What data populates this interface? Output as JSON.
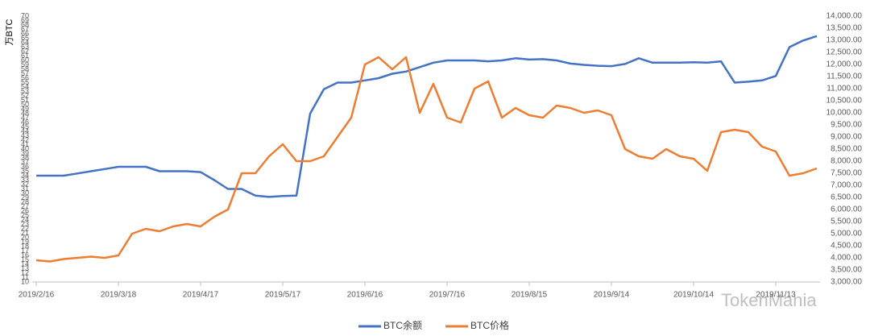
{
  "chart_data": {
    "type": "line",
    "y_label": "万BTC",
    "watermark": "TokenMania",
    "categories": [
      "2019/2/16",
      null,
      null,
      null,
      null,
      null,
      "2019/3/18",
      null,
      null,
      null,
      null,
      null,
      "2019/4/17",
      null,
      null,
      null,
      null,
      null,
      "2019/5/17",
      null,
      null,
      null,
      null,
      null,
      "2019/6/16",
      null,
      null,
      null,
      null,
      null,
      "2019/7/16",
      null,
      null,
      null,
      null,
      null,
      "2019/8/15",
      null,
      null,
      null,
      null,
      null,
      "2019/9/14",
      null,
      null,
      null,
      null,
      null,
      "2019/10/14",
      null,
      null,
      null,
      null,
      null,
      "2019/11/13",
      null,
      null,
      null
    ],
    "series": [
      {
        "name": "BTC余额",
        "color": "#4472c4",
        "axis": "y",
        "values": [
          34,
          34,
          34,
          34.5,
          35,
          35.5,
          36,
          36,
          36,
          35,
          35,
          35,
          34.8,
          33,
          31,
          31,
          29.5,
          29.2,
          29.4,
          29.5,
          48,
          53.5,
          55,
          55,
          55.5,
          56,
          57,
          57.5,
          58.5,
          59.5,
          60,
          60,
          60,
          59.8,
          60,
          60.5,
          60.2,
          60.3,
          60,
          59.3,
          59,
          58.8,
          58.7,
          59.2,
          60.5,
          59.5,
          59.5,
          59.5,
          59.6,
          59.5,
          59.8,
          55,
          55.2,
          55.5,
          56.5,
          63,
          64.5,
          65.5
        ]
      },
      {
        "name": "BTC价格",
        "color": "#ed7d31",
        "axis": "y2",
        "values": [
          3900,
          3850,
          3950,
          4000,
          4050,
          4000,
          4100,
          5000,
          5200,
          5100,
          5300,
          5400,
          5300,
          5700,
          6000,
          7500,
          7500,
          8200,
          8700,
          8000,
          8000,
          8200,
          9000,
          9800,
          12000,
          12300,
          11800,
          12300,
          10000,
          11200,
          9800,
          9600,
          11000,
          11300,
          9800,
          10200,
          9900,
          9800,
          10300,
          10200,
          10000,
          10100,
          9900,
          8500,
          8200,
          8100,
          8500,
          8200,
          8100,
          7600,
          9200,
          9300,
          9200,
          8600,
          8400,
          7400,
          7500,
          7700
        ]
      }
    ],
    "ylim": [
      10,
      70
    ],
    "yticks": [
      10,
      11,
      12,
      13,
      14,
      15,
      16,
      17,
      18,
      19,
      20,
      21,
      22,
      23,
      24,
      25,
      26,
      27,
      28,
      29,
      30,
      31,
      32,
      33,
      34,
      35,
      36,
      37,
      38,
      39,
      40,
      41,
      42,
      43,
      44,
      45,
      46,
      47,
      48,
      49,
      50,
      51,
      52,
      53,
      54,
      55,
      56,
      57,
      58,
      59,
      60,
      61,
      62,
      63,
      64,
      65,
      66,
      67,
      68,
      69,
      70
    ],
    "y2lim": [
      3000,
      14000
    ],
    "y2ticks": [
      {
        "value": 3000,
        "label": "3,000.00"
      },
      {
        "value": 3500,
        "label": "3,500.00"
      },
      {
        "value": 4000,
        "label": "4,000.00"
      },
      {
        "value": 4500,
        "label": "4,500.00"
      },
      {
        "value": 5000,
        "label": "5,000.00"
      },
      {
        "value": 5500,
        "label": "5,500.00"
      },
      {
        "value": 6000,
        "label": "6,000.00"
      },
      {
        "value": 6500,
        "label": "6,500.00"
      },
      {
        "value": 7000,
        "label": "7,000.00"
      },
      {
        "value": 7500,
        "label": "7,500.00"
      },
      {
        "value": 8000,
        "label": "8,000.00"
      },
      {
        "value": 8500,
        "label": "8,500.00"
      },
      {
        "value": 9000,
        "label": "9,000.00"
      },
      {
        "value": 9500,
        "label": "9,500.00"
      },
      {
        "value": 10000,
        "label": "10,000.00"
      },
      {
        "value": 10500,
        "label": "10,500.00"
      },
      {
        "value": 11000,
        "label": "11,000.00"
      },
      {
        "value": 11500,
        "label": "11,500.00"
      },
      {
        "value": 12000,
        "label": "12,000.00"
      },
      {
        "value": 12500,
        "label": "12,500.00"
      },
      {
        "value": 13000,
        "label": "13,000.00"
      },
      {
        "value": 13500,
        "label": "13,500.00"
      },
      {
        "value": 14000,
        "label": "14,000.00"
      }
    ],
    "grid": false,
    "legend": "bottom"
  }
}
